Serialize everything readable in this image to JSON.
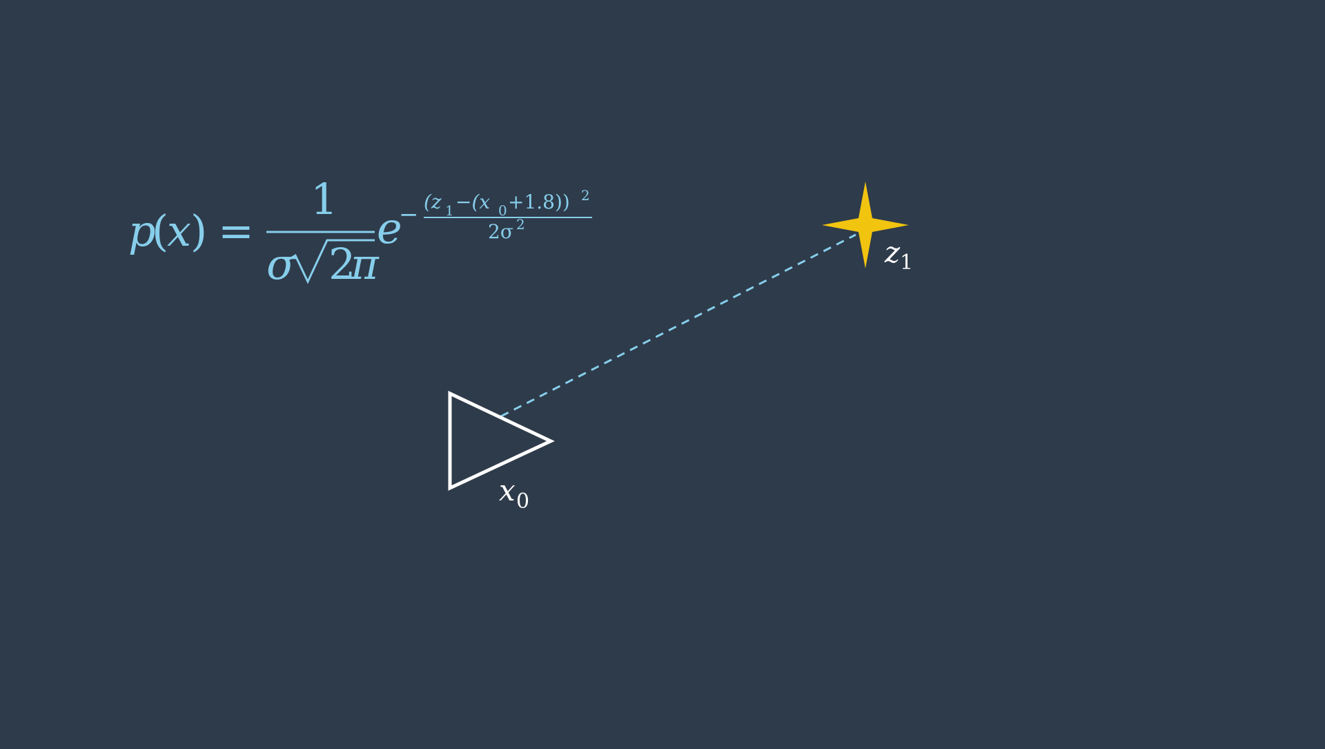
{
  "colors": {
    "background": "#2e3b4a",
    "formula": "#87ceeb",
    "triangle": "#ffffff",
    "star": "#f1c40f",
    "label": "#ffffff",
    "link": "#87ceeb"
  },
  "formula": {
    "p": "p",
    "open_paren": "(",
    "x": "x",
    "close_paren": ")",
    "equals": "=",
    "numerator": "1",
    "sigma": "σ",
    "two": "2",
    "pi": "π",
    "e": "e",
    "minus": "−",
    "exp_numerator": "(z",
    "exp_z_sub": "1",
    "exp_mid": "−(x",
    "exp_x_sub": "0",
    "exp_tail": "+1.8))",
    "exp_square": "2",
    "exp_denominator": "2σ",
    "exp_den_square": "2"
  },
  "nodes": {
    "x0": {
      "base": "x",
      "sub": "0"
    },
    "z1": {
      "base": "z",
      "sub": "1"
    }
  }
}
